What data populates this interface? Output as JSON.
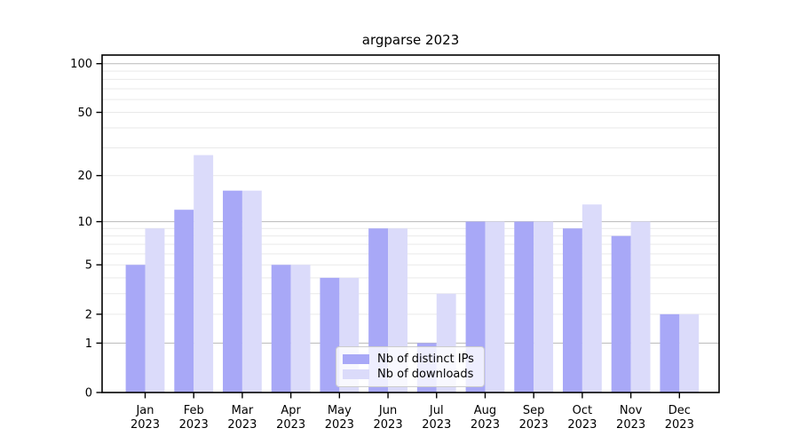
{
  "title": "argparse 2023",
  "legend": {
    "items": [
      {
        "label": "Nb of distinct IPs",
        "color": "#a8a8f7"
      },
      {
        "label": "Nb of downloads",
        "color": "#dbdbfa"
      }
    ]
  },
  "chart_data": {
    "type": "bar",
    "title": "argparse 2023",
    "categories": [
      "Jan",
      "Feb",
      "Mar",
      "Apr",
      "May",
      "Jun",
      "Jul",
      "Aug",
      "Sep",
      "Oct",
      "Nov",
      "Dec"
    ],
    "category_year": "2023",
    "series": [
      {
        "name": "Nb of distinct IPs",
        "color": "#a8a8f7",
        "values": [
          5,
          12,
          16,
          5,
          4,
          9,
          1,
          10,
          10,
          9,
          8,
          2
        ]
      },
      {
        "name": "Nb of downloads",
        "color": "#dbdbfa",
        "values": [
          9,
          27,
          16,
          5,
          4,
          9,
          3,
          10,
          10,
          13,
          10,
          2
        ]
      }
    ],
    "yscale": "log1p",
    "ylim": [
      0,
      113
    ],
    "yticks": [
      0,
      1,
      2,
      5,
      10,
      20,
      50,
      100
    ],
    "grid_major": [
      1,
      10,
      100
    ],
    "grid_minor": [
      2,
      3,
      4,
      5,
      6,
      7,
      8,
      9,
      20,
      30,
      40,
      50,
      60,
      70,
      80,
      90
    ],
    "grid_major_color": "#b9b9b9",
    "grid_minor_color": "#e9e9e9",
    "axis_color": "#000000",
    "legend_position": "lower center",
    "xlabel": "",
    "ylabel": ""
  }
}
